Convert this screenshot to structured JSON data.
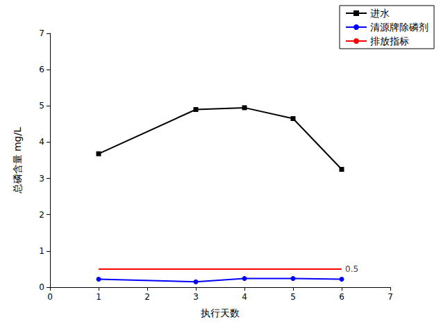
{
  "chart_data": {
    "type": "line",
    "x_label": "执行天数",
    "y_label": "总磷含量 mg/L",
    "xlim": [
      0,
      7
    ],
    "xticks": [
      0,
      1,
      2,
      3,
      4,
      5,
      6,
      7
    ],
    "ylim": [
      0,
      7
    ],
    "yticks": [
      0,
      1,
      2,
      3,
      4,
      5,
      6,
      7
    ],
    "grid": false,
    "legend": "upper right",
    "series": [
      {
        "name": "进水",
        "color": "#000000",
        "marker": "square",
        "x": [
          1,
          3,
          4,
          5,
          6
        ],
        "values": [
          3.68,
          4.9,
          4.95,
          4.65,
          3.25
        ]
      },
      {
        "name": "清源牌除磷剂",
        "color": "#0000ff",
        "marker": "circle",
        "x": [
          1,
          3,
          4,
          5,
          6
        ],
        "values": [
          0.22,
          0.15,
          0.24,
          0.24,
          0.22
        ]
      },
      {
        "name": "排放指标",
        "color": "#ff0000",
        "marker": "none",
        "x": [
          1,
          6
        ],
        "values": [
          0.5,
          0.5
        ]
      }
    ],
    "annotations": [
      {
        "text": "0.5",
        "x": 6,
        "y": 0.5
      }
    ]
  }
}
